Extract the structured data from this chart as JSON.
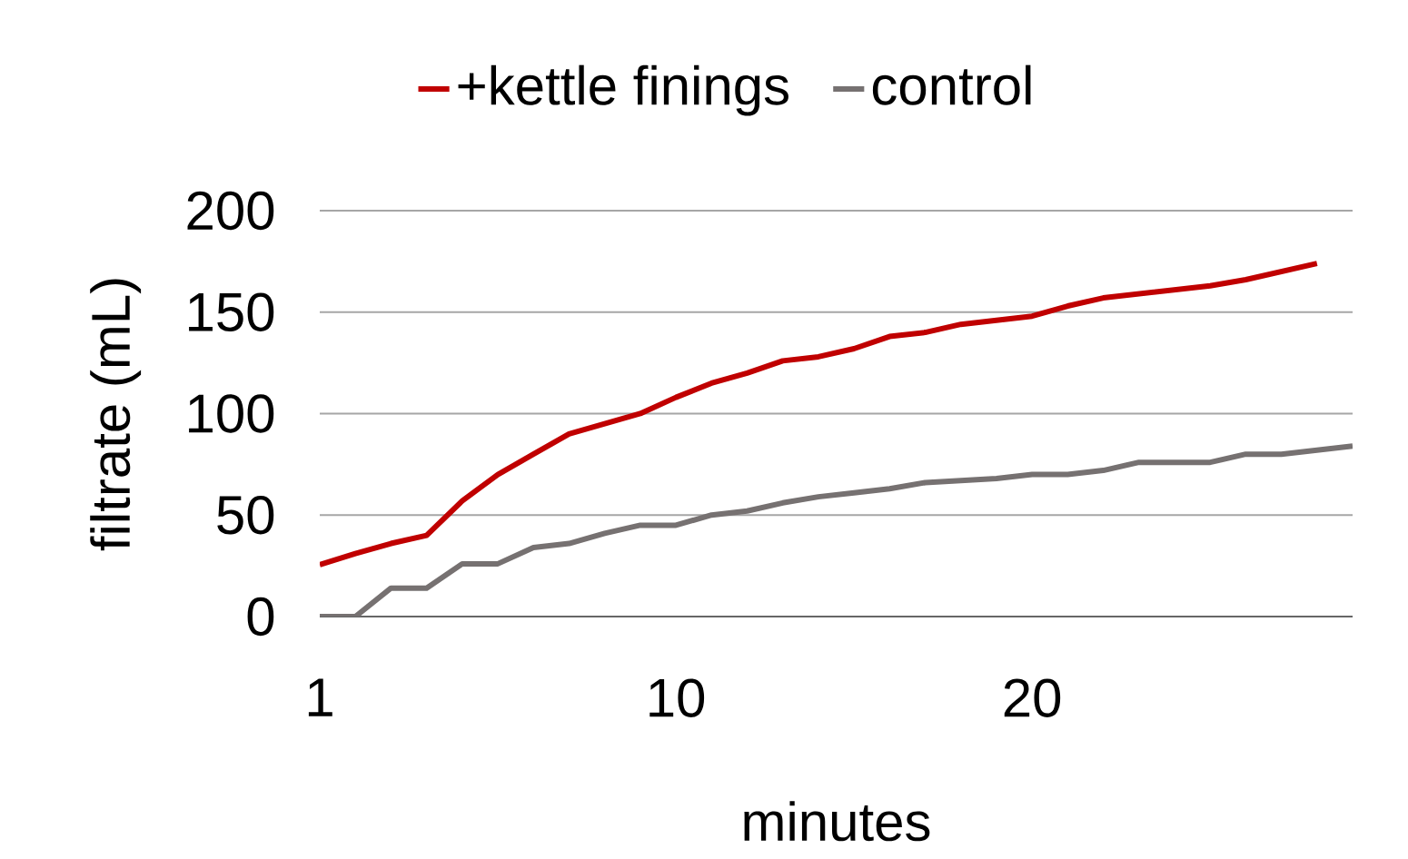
{
  "chart_data": {
    "type": "line",
    "xlabel": "minutes",
    "ylabel": "filtrate (mL)",
    "categories": [
      "1",
      null,
      null,
      null,
      null,
      null,
      null,
      null,
      null,
      null,
      "10",
      null,
      null,
      null,
      null,
      null,
      null,
      null,
      null,
      null,
      "20",
      null,
      null,
      null,
      null,
      null,
      null,
      null,
      null,
      null
    ],
    "series": [
      {
        "name": "+kettle finings",
        "color": "#c00000",
        "values": [
          25.5,
          31,
          36,
          40,
          57,
          70,
          80,
          90,
          95,
          100,
          108,
          115,
          120,
          126,
          128,
          132,
          138,
          140,
          144,
          146,
          148,
          153,
          157,
          159,
          161,
          163,
          166,
          170,
          174,
          null
        ]
      },
      {
        "name": "control",
        "color": "#767171",
        "values": [
          0,
          0,
          14,
          14,
          26,
          26,
          34,
          36,
          41,
          45,
          45,
          50,
          52,
          56,
          59,
          61,
          63,
          66,
          67,
          68,
          70,
          70,
          72,
          76,
          76,
          76,
          80,
          80,
          82,
          84
        ]
      }
    ],
    "ylim": [
      0,
      200
    ],
    "yticks": [
      0,
      50,
      100,
      150,
      200
    ],
    "grid": "y",
    "legend": "top"
  }
}
